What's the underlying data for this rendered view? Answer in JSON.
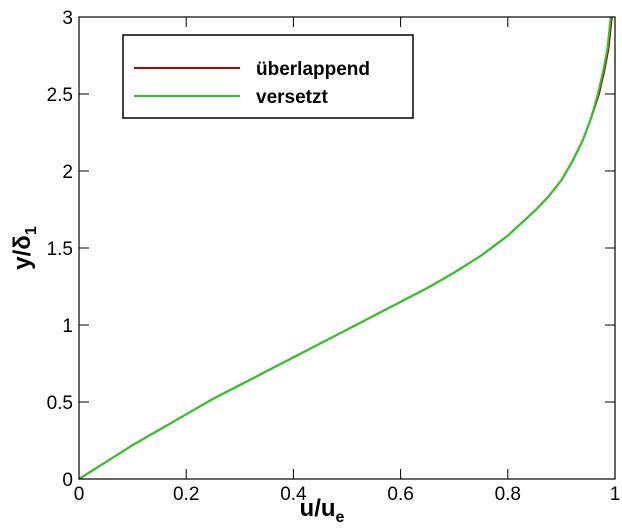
{
  "chart_data": {
    "type": "line",
    "title": "",
    "xlabel": {
      "main": "u/u",
      "sub": "e"
    },
    "ylabel": {
      "main": "y/δ",
      "sub": "1"
    },
    "xlim": [
      0,
      1
    ],
    "ylim": [
      0,
      3
    ],
    "xticks": [
      0,
      0.2,
      0.4,
      0.6,
      0.8,
      1
    ],
    "xtick_labels": [
      "0",
      "0.2",
      "0.4",
      "0.6",
      "0.8",
      "1"
    ],
    "yticks": [
      0,
      0.5,
      1,
      1.5,
      2,
      2.5,
      3
    ],
    "ytick_labels": [
      "0",
      "0.5",
      "1",
      "1.5",
      "2",
      "2.5",
      "3"
    ],
    "grid": false,
    "legend_position": "top-left",
    "series": [
      {
        "name": "überlappend",
        "color": "#b30000",
        "x": [
          0,
          0.05,
          0.1,
          0.15,
          0.2,
          0.25,
          0.3,
          0.35,
          0.4,
          0.45,
          0.5,
          0.55,
          0.6,
          0.65,
          0.7,
          0.75,
          0.8,
          0.85,
          0.875,
          0.9,
          0.92,
          0.94,
          0.955,
          0.97,
          0.98,
          0.988,
          0.994
        ],
        "y": [
          0,
          0.11,
          0.22,
          0.32,
          0.42,
          0.52,
          0.61,
          0.7,
          0.79,
          0.88,
          0.97,
          1.06,
          1.15,
          1.24,
          1.34,
          1.45,
          1.58,
          1.74,
          1.83,
          1.94,
          2.06,
          2.2,
          2.34,
          2.5,
          2.65,
          2.8,
          3.0
        ]
      },
      {
        "name": "versetzt",
        "color": "#22cc22",
        "x": [
          0,
          0.05,
          0.1,
          0.15,
          0.2,
          0.25,
          0.3,
          0.35,
          0.4,
          0.45,
          0.5,
          0.55,
          0.6,
          0.65,
          0.7,
          0.75,
          0.8,
          0.85,
          0.875,
          0.9,
          0.92,
          0.94,
          0.955,
          0.968,
          0.978,
          0.986,
          0.992
        ],
        "y": [
          0,
          0.11,
          0.22,
          0.32,
          0.42,
          0.52,
          0.61,
          0.7,
          0.79,
          0.88,
          0.97,
          1.06,
          1.15,
          1.24,
          1.34,
          1.45,
          1.58,
          1.74,
          1.83,
          1.94,
          2.06,
          2.2,
          2.34,
          2.5,
          2.65,
          2.8,
          3.0
        ]
      }
    ]
  }
}
